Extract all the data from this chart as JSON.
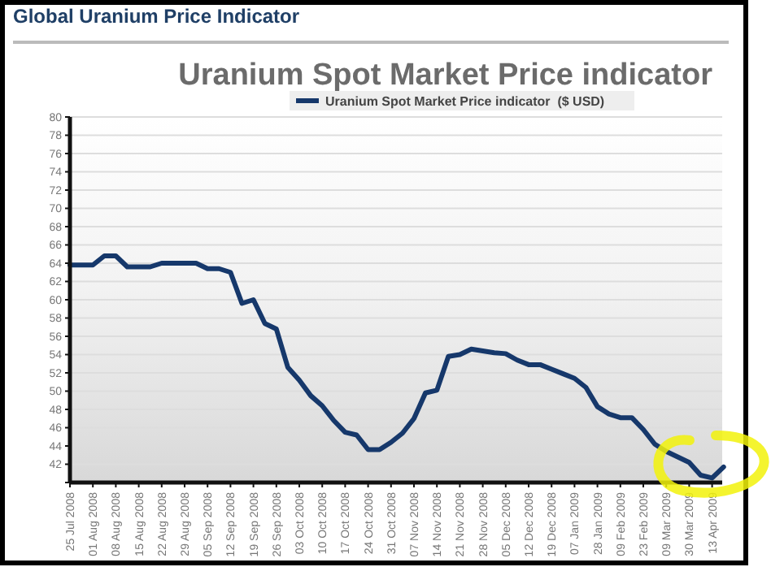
{
  "chart_data": {
    "type": "line",
    "subtitle": "Global Uranium Price Indicator",
    "title": "Uranium Spot Market Price indicator",
    "categories": [
      "25 Jul 2008",
      null,
      "01 Aug 2008",
      null,
      "08 Aug 2008",
      null,
      "15 Aug 2008",
      null,
      "22 Aug 2008",
      null,
      "29 Aug 2008",
      null,
      "05 Sep 2008",
      null,
      "12 Sep 2008",
      null,
      "19 Sep 2008",
      null,
      "26 Sep 2008",
      null,
      "03 Oct 2008",
      null,
      "10 Oct 2008",
      null,
      "17 Oct 2008",
      null,
      "24 Oct 2008",
      null,
      "31 Oct 2008",
      null,
      "07 Nov 2008",
      null,
      "14 Nov 2008",
      null,
      "21 Nov 2008",
      null,
      "28 Nov 2008",
      null,
      "05 Dec 2008",
      null,
      "12 Dec 2008",
      null,
      "19 Dec 2008",
      null,
      "07 Jan 2009",
      null,
      "28 Jan 2009",
      null,
      "09 Feb 2009",
      null,
      "23 Feb 2009",
      null,
      "09 Mar 2009",
      null,
      "30 Mar 2009",
      null,
      "13 Apr 2009",
      null
    ],
    "series": [
      {
        "name": "Uranium Spot Market Price indicator  ($ USD)",
        "color": "#16386b",
        "values": [
          63.8,
          63.8,
          63.8,
          64.8,
          64.8,
          63.6,
          63.6,
          63.6,
          64,
          64,
          64,
          64,
          63.4,
          63.4,
          63,
          59.6,
          60,
          57.4,
          56.8,
          52.6,
          51.2,
          49.5,
          48.4,
          46.8,
          45.5,
          45.2,
          43.6,
          43.6,
          44.4,
          45.4,
          47,
          49.8,
          50.1,
          53.8,
          54,
          54.6,
          54.4,
          54.2,
          54.1,
          53.4,
          52.9,
          52.9,
          52.4,
          51.9,
          51.4,
          50.4,
          48.3,
          47.5,
          47.1,
          47.1,
          45.8,
          44.2,
          43.4,
          42.8,
          42.2,
          40.8,
          40.5,
          41.7
        ]
      }
    ],
    "ylim": [
      40,
      80
    ],
    "yticks": [
      {
        "value": 40,
        "label": null
      },
      42,
      44,
      46,
      48,
      50,
      52,
      54,
      56,
      58,
      60,
      62,
      64,
      66,
      68,
      70,
      72,
      74,
      76,
      78,
      80
    ],
    "grid": "y",
    "legend": "top",
    "line_style": "solid",
    "marker": "none"
  }
}
